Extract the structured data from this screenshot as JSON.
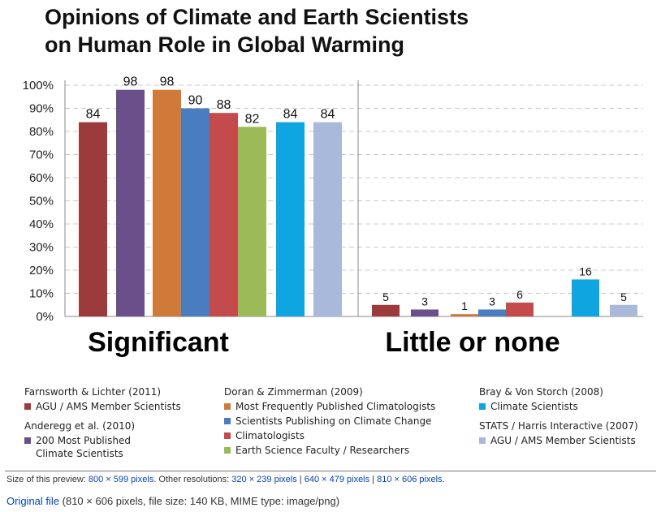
{
  "title_line1": "Opinions of Climate and Earth Scientists",
  "title_line2": "on Human Role in Global Warming",
  "chart_data": {
    "type": "bar",
    "title": "Opinions of Climate and Earth Scientists on Human Role in Global Warming",
    "ylim": [
      0,
      100
    ],
    "yticks": [
      "0%",
      "10%",
      "20%",
      "30%",
      "40%",
      "50%",
      "60%",
      "70%",
      "80%",
      "90%",
      "100%"
    ],
    "grid": true,
    "groups": [
      {
        "label": "Significant",
        "bars": [
          {
            "series": "Farnsworth & Lichter (2011) AGU / AMS Member Scientists",
            "value": 84,
            "color": "#9b3b3b"
          },
          {
            "series": "Anderegg et al. (2010) 200 Most Published Climate Scientists",
            "value": 98,
            "color": "#6a4f8a"
          },
          {
            "series": "Doran & Zimmerman (2009) Most Frequently Published Climatologists",
            "value": 98,
            "color": "#d07a3a"
          },
          {
            "series": "Doran & Zimmerman (2009) Scientists Publishing on Climate Change",
            "value": 90,
            "color": "#4a7cc0"
          },
          {
            "series": "Doran & Zimmerman (2009) Climatologists",
            "value": 88,
            "color": "#c44b4b"
          },
          {
            "series": "Doran & Zimmerman (2009) Earth Science Faculty / Researchers",
            "value": 82,
            "color": "#9bbb59"
          },
          {
            "series": "Bray & Von Storch (2008) Climate Scientists",
            "value": 84,
            "color": "#0ea5e0"
          },
          {
            "series": "STATS / Harris Interactive (2007) AGU / AMS Member Scientists",
            "value": 84,
            "color": "#a9b9d9"
          }
        ]
      },
      {
        "label": "Little or none",
        "bars": [
          {
            "series": "Farnsworth & Lichter (2011) AGU / AMS Member Scientists",
            "value": 5,
            "color": "#9b3b3b"
          },
          {
            "series": "Anderegg et al. (2010) 200 Most Published Climate Scientists",
            "value": 3,
            "color": "#6a4f8a"
          },
          {
            "series": "Doran & Zimmerman (2009) Most Frequently Published Climatologists",
            "value": 1,
            "color": "#d07a3a"
          },
          {
            "series": "Doran & Zimmerman (2009) Scientists Publishing on Climate Change",
            "value": 3,
            "color": "#4a7cc0"
          },
          {
            "series": "Doran & Zimmerman (2009) Climatologists",
            "value": 6,
            "color": "#c44b4b"
          },
          {
            "series": "Bray & Von Storch (2008) Climate Scientists",
            "value": 16,
            "color": "#0ea5e0"
          },
          {
            "series": "STATS / Harris Interactive (2007) AGU / AMS Member Scientists",
            "value": 5,
            "color": "#a9b9d9"
          }
        ]
      }
    ]
  },
  "legend": {
    "farnsworth_head": "Farnsworth & Lichter (2011)",
    "farnsworth_item": "AGU / AMS Member Scientists",
    "anderegg_head": "Anderegg et al. (2010)",
    "anderegg_item1": "200 Most Published",
    "anderegg_item2": "Climate Scientists",
    "doran_head": "Doran & Zimmerman (2009)",
    "doran_items": [
      "Most Frequently Published Climatologists",
      "Scientists Publishing on Climate Change",
      "Climatologists",
      "Earth Science Faculty / Researchers"
    ],
    "bray_head": "Bray & Von Storch (2008)",
    "bray_item": "Climate Scientists",
    "stats_head": "STATS / Harris Interactive (2007)",
    "stats_item": "AGU / AMS Member Scientists"
  },
  "footer": {
    "preview_prefix": "Size of this preview: ",
    "preview_link": "800 × 599 pixels",
    "other_prefix": ". Other resolutions: ",
    "res1": "320 × 239 pixels",
    "sep1": " | ",
    "res2": "640 × 479 pixels",
    "sep2": " | ",
    "res3": "810 × 606 pixels",
    "end": ".",
    "original_link": "Original file",
    "original_info": " (810 × 606 pixels, file size: 140 KB, MIME type: image/png)"
  }
}
